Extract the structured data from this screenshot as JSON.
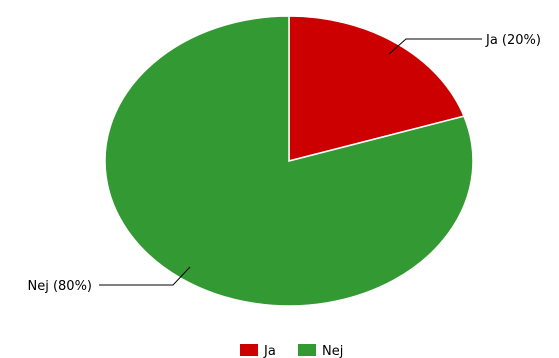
{
  "chart_data": {
    "type": "pie",
    "categories": [
      "Ja",
      "Nej"
    ],
    "values": [
      20,
      80
    ],
    "slice_labels": [
      "Ja (20%)",
      "Nej (80%)"
    ],
    "colors": [
      "#cc0000",
      "#339933"
    ],
    "start_angle_deg": 0,
    "direction": "clockwise",
    "legend": {
      "position": "bottom-center",
      "entries": [
        "Ja",
        "Nej"
      ]
    }
  }
}
